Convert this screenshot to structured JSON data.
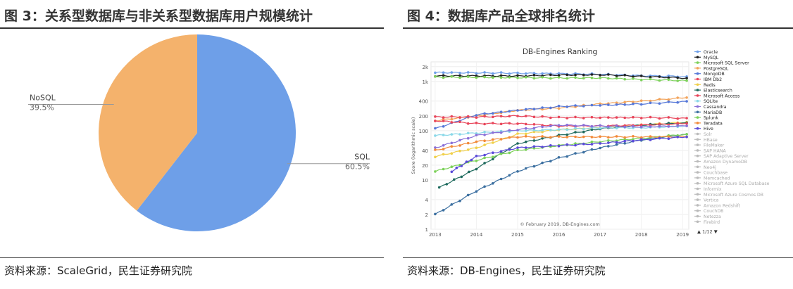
{
  "left": {
    "title": "图 3：关系型数据库与非关系型数据库用户规模统计",
    "source": "资料来源：ScaleGrid，民生证券研究院",
    "chart_data": {
      "type": "pie",
      "slices": [
        {
          "label": "SQL",
          "percent": "60.5%",
          "value": 60.5,
          "color": "#6e9fe8"
        },
        {
          "label": "NoSQL",
          "percent": "39.5%",
          "value": 39.5,
          "color": "#f4b26c"
        }
      ]
    }
  },
  "right": {
    "title": "图 4：数据库产品全球排名统计",
    "source": "资料来源：DB-Engines，民生证券研究院",
    "chart_data": {
      "type": "line",
      "title": "DB-Engines Ranking",
      "ylabel": "Score (logarithmic scale)",
      "y_scale": "log",
      "ylim": [
        1,
        2500
      ],
      "y_ticks": [
        "2k",
        "1k",
        "400",
        "200",
        "100",
        "40",
        "20",
        "10",
        "4",
        "2",
        "1"
      ],
      "y_tick_values": [
        2000,
        1000,
        400,
        200,
        100,
        40,
        20,
        10,
        4,
        2,
        1
      ],
      "x_ticks": [
        "2013",
        "2014",
        "2015",
        "2016",
        "2017",
        "2018",
        "2019"
      ],
      "xlim": [
        2012.9,
        2019.15
      ],
      "credit": "© February 2019, DB-Engines.com",
      "legend_pager": "1/12",
      "legend": [
        {
          "name": "Oracle",
          "color": "#6e9fe8",
          "active": true
        },
        {
          "name": "MySQL",
          "color": "#222222",
          "active": true
        },
        {
          "name": "Microsoft SQL Server",
          "color": "#7cd15a",
          "active": true
        },
        {
          "name": "PostgreSQL",
          "color": "#f2a35a",
          "active": true
        },
        {
          "name": "MongoDB",
          "color": "#5577d8",
          "active": true
        },
        {
          "name": "IBM Db2",
          "color": "#e8455a",
          "active": true
        },
        {
          "name": "Redis",
          "color": "#f0d04a",
          "active": true
        },
        {
          "name": "Elasticsearch",
          "color": "#1f6b5e",
          "active": true
        },
        {
          "name": "Microsoft Access",
          "color": "#e8455a",
          "active": true
        },
        {
          "name": "SQLite",
          "color": "#8ad8e8",
          "active": true
        },
        {
          "name": "Cassandra",
          "color": "#8a70d8",
          "active": true
        },
        {
          "name": "MariaDB",
          "color": "#3b6fa0",
          "active": true
        },
        {
          "name": "Splunk",
          "color": "#7cd15a",
          "active": true
        },
        {
          "name": "Teradata",
          "color": "#f28a3a",
          "active": true
        },
        {
          "name": "Hive",
          "color": "#5a4ad8",
          "active": true
        },
        {
          "name": "Solr",
          "color": "#bbbbbb",
          "active": false
        },
        {
          "name": "HBase",
          "color": "#bbbbbb",
          "active": false
        },
        {
          "name": "FileMaker",
          "color": "#bbbbbb",
          "active": false
        },
        {
          "name": "SAP HANA",
          "color": "#bbbbbb",
          "active": false
        },
        {
          "name": "SAP Adaptive Server",
          "color": "#bbbbbb",
          "active": false
        },
        {
          "name": "Amazon DynamoDB",
          "color": "#bbbbbb",
          "active": false
        },
        {
          "name": "Neo4j",
          "color": "#bbbbbb",
          "active": false
        },
        {
          "name": "Couchbase",
          "color": "#bbbbbb",
          "active": false
        },
        {
          "name": "Memcached",
          "color": "#bbbbbb",
          "active": false
        },
        {
          "name": "Microsoft Azure SQL Database",
          "color": "#bbbbbb",
          "active": false
        },
        {
          "name": "Informix",
          "color": "#bbbbbb",
          "active": false
        },
        {
          "name": "Microsoft Azure Cosmos DB",
          "color": "#bbbbbb",
          "active": false
        },
        {
          "name": "Vertica",
          "color": "#bbbbbb",
          "active": false
        },
        {
          "name": "Amazon Redshift",
          "color": "#bbbbbb",
          "active": false
        },
        {
          "name": "CouchDB",
          "color": "#bbbbbb",
          "active": false
        },
        {
          "name": "Netezza",
          "color": "#bbbbbb",
          "active": false
        },
        {
          "name": "Firebird",
          "color": "#bbbbbb",
          "active": false
        }
      ],
      "series": [
        {
          "name": "Oracle",
          "color": "#6e9fe8",
          "x": [
            2013.0,
            2014.0,
            2015.0,
            2016.0,
            2017.0,
            2018.0,
            2019.1
          ],
          "y": [
            1520,
            1500,
            1470,
            1440,
            1400,
            1310,
            1260
          ]
        },
        {
          "name": "MySQL",
          "color": "#222222",
          "x": [
            2013.0,
            2014.0,
            2015.0,
            2016.0,
            2017.0,
            2018.0,
            2019.1
          ],
          "y": [
            1300,
            1300,
            1290,
            1350,
            1370,
            1270,
            1170
          ]
        },
        {
          "name": "Microsoft SQL Server",
          "color": "#7cd15a",
          "x": [
            2013.0,
            2014.0,
            2015.0,
            2016.0,
            2017.0,
            2018.0,
            2019.1
          ],
          "y": [
            1230,
            1220,
            1200,
            1180,
            1180,
            1100,
            1040
          ]
        },
        {
          "name": "PostgreSQL",
          "color": "#f2a35a",
          "x": [
            2013.0,
            2014.0,
            2015.0,
            2016.0,
            2017.0,
            2018.0,
            2019.1
          ],
          "y": [
            160,
            200,
            260,
            290,
            350,
            400,
            470
          ]
        },
        {
          "name": "MongoDB",
          "color": "#5577d8",
          "x": [
            2013.0,
            2014.0,
            2015.0,
            2016.0,
            2017.0,
            2018.0,
            2019.1
          ],
          "y": [
            110,
            210,
            260,
            310,
            330,
            350,
            395
          ]
        },
        {
          "name": "IBM Db2",
          "color": "#e8455a",
          "x": [
            2013.0,
            2014.0,
            2015.0,
            2016.0,
            2017.0,
            2018.0,
            2019.1
          ],
          "y": [
            190,
            190,
            200,
            185,
            185,
            185,
            180
          ]
        },
        {
          "name": "Redis",
          "color": "#f0d04a",
          "x": [
            2013.0,
            2014.0,
            2015.0,
            2016.0,
            2017.0,
            2018.0,
            2019.1
          ],
          "y": [
            30,
            45,
            85,
            105,
            115,
            130,
            150
          ]
        },
        {
          "name": "Elasticsearch",
          "color": "#1f6b5e",
          "x": [
            2013.1,
            2014.0,
            2015.0,
            2016.0,
            2017.0,
            2018.0,
            2019.1
          ],
          "y": [
            7,
            17,
            55,
            80,
            110,
            130,
            145
          ]
        },
        {
          "name": "Microsoft Access",
          "color": "#e8455a",
          "x": [
            2013.0,
            2014.0,
            2015.0,
            2016.0,
            2017.0,
            2018.0,
            2019.1
          ],
          "y": [
            160,
            140,
            140,
            125,
            125,
            130,
            140
          ]
        },
        {
          "name": "SQLite",
          "color": "#8ad8e8",
          "x": [
            2013.0,
            2014.0,
            2015.0,
            2016.0,
            2017.0,
            2018.0,
            2019.1
          ],
          "y": [
            80,
            90,
            100,
            105,
            115,
            115,
            125
          ]
        },
        {
          "name": "Cassandra",
          "color": "#8a70d8",
          "x": [
            2013.0,
            2014.0,
            2015.0,
            2016.0,
            2017.0,
            2018.0,
            2019.1
          ],
          "y": [
            45,
            80,
            105,
            130,
            125,
            120,
            125
          ]
        },
        {
          "name": "MariaDB",
          "color": "#3b6fa0",
          "x": [
            2013.0,
            2014.0,
            2015.0,
            2016.0,
            2017.0,
            2018.0,
            2019.1
          ],
          "y": [
            2,
            6,
            15,
            28,
            45,
            65,
            85
          ]
        },
        {
          "name": "Splunk",
          "color": "#7cd15a",
          "x": [
            2013.0,
            2014.0,
            2015.0,
            2016.0,
            2017.0,
            2018.0,
            2019.1
          ],
          "y": [
            15,
            25,
            40,
            50,
            60,
            70,
            85
          ]
        },
        {
          "name": "Teradata",
          "color": "#f28a3a",
          "x": [
            2013.0,
            2014.0,
            2015.0,
            2016.0,
            2017.0,
            2018.0,
            2019.1
          ],
          "y": [
            40,
            60,
            75,
            75,
            75,
            75,
            75
          ]
        },
        {
          "name": "Hive",
          "color": "#5a4ad8",
          "x": [
            2013.4,
            2014.0,
            2015.0,
            2016.0,
            2017.0,
            2018.0,
            2019.1
          ],
          "y": [
            15,
            30,
            45,
            50,
            55,
            65,
            75
          ]
        }
      ]
    }
  }
}
